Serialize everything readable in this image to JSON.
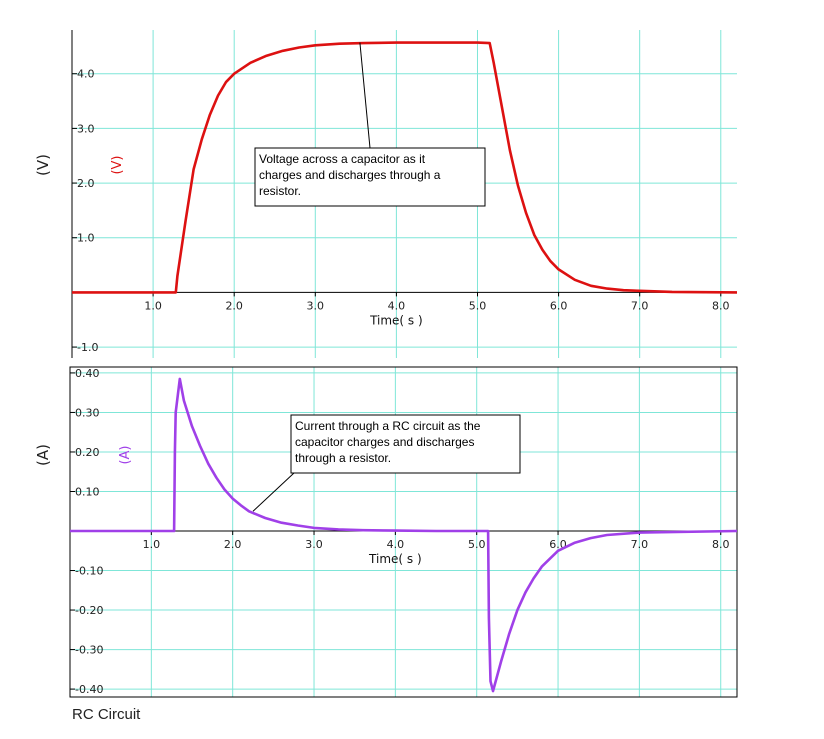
{
  "caption": "RC Circuit",
  "colors": {
    "grid": "#7fe6d8",
    "voltage": "#dd1111",
    "current": "#a040e8",
    "axis": "#000000"
  },
  "chart_data": [
    {
      "type": "line",
      "xlabel": "Time( s )",
      "ylabel": "(V)",
      "legend_label": "(V)",
      "xlim": [
        0,
        8.2
      ],
      "ylim": [
        -1.2,
        4.8
      ],
      "x_ticks": [
        1.0,
        2.0,
        3.0,
        4.0,
        5.0,
        6.0,
        7.0,
        8.0
      ],
      "x_tick_labels": [
        "1.0",
        "2.0",
        "3.0",
        "4.0",
        "5.0",
        "6.0",
        "7.0",
        "8.0"
      ],
      "y_ticks": [
        4.0,
        3.0,
        2.0,
        1.0,
        -1.0
      ],
      "y_tick_labels": [
        "4.0",
        "3.0",
        "2.0",
        "1.0",
        "-1.0"
      ],
      "grid": true,
      "annotation": [
        "Voltage across a capacitor as it",
        "charges and discharges through a",
        "resistor."
      ],
      "annotation_target": [
        3.55,
        4.57
      ],
      "series": [
        {
          "x": [
            0.0,
            1.0,
            1.28,
            1.3,
            1.4,
            1.5,
            1.6,
            1.7,
            1.8,
            1.9,
            2.0,
            2.2,
            2.4,
            2.6,
            2.8,
            3.0,
            3.3,
            3.6,
            4.0,
            4.5,
            5.0,
            5.15,
            5.2,
            5.3,
            5.4,
            5.5,
            5.6,
            5.7,
            5.8,
            5.9,
            6.0,
            6.2,
            6.4,
            6.6,
            6.8,
            7.0,
            7.4,
            8.2
          ],
          "y": [
            0.0,
            0.0,
            0.0,
            0.3,
            1.3,
            2.25,
            2.8,
            3.25,
            3.6,
            3.85,
            4.0,
            4.2,
            4.33,
            4.42,
            4.48,
            4.52,
            4.55,
            4.56,
            4.57,
            4.57,
            4.57,
            4.56,
            4.2,
            3.4,
            2.6,
            1.95,
            1.45,
            1.05,
            0.78,
            0.57,
            0.42,
            0.23,
            0.12,
            0.07,
            0.04,
            0.03,
            0.01,
            0.0
          ]
        }
      ]
    },
    {
      "type": "line",
      "xlabel": "Time( s )",
      "ylabel": "(A)",
      "legend_label": "(A)",
      "xlim": [
        0,
        8.2
      ],
      "ylim": [
        -0.42,
        0.415
      ],
      "x_ticks": [
        1.0,
        2.0,
        3.0,
        4.0,
        5.0,
        6.0,
        7.0,
        8.0
      ],
      "x_tick_labels": [
        "1.0",
        "2.0",
        "3.0",
        "4.0",
        "5.0",
        "6.0",
        "7.0",
        "8.0"
      ],
      "y_ticks": [
        0.4,
        0.3,
        0.2,
        0.1,
        -0.1,
        -0.2,
        -0.3,
        -0.4
      ],
      "y_tick_labels": [
        "0.40",
        "0.30",
        "0.20",
        "0.10",
        "-0.10",
        "-0.20",
        "-0.30",
        "-0.40"
      ],
      "grid": true,
      "annotation": [
        "Current through a RC circuit as the",
        "capacitor charges and discharges",
        "through a resistor."
      ],
      "annotation_target": [
        2.25,
        0.05
      ],
      "series": [
        {
          "x": [
            0.0,
            1.0,
            1.28,
            1.29,
            1.3,
            1.35,
            1.4,
            1.5,
            1.6,
            1.7,
            1.8,
            1.9,
            2.0,
            2.1,
            2.2,
            2.4,
            2.6,
            2.8,
            3.0,
            3.3,
            3.6,
            4.0,
            4.5,
            5.1,
            5.14,
            5.15,
            5.17,
            5.2,
            5.3,
            5.4,
            5.5,
            5.6,
            5.7,
            5.8,
            5.9,
            6.0,
            6.2,
            6.4,
            6.6,
            7.0,
            8.2
          ],
          "y": [
            0.0,
            0.0,
            0.0,
            0.2,
            0.3,
            0.385,
            0.33,
            0.265,
            0.215,
            0.17,
            0.135,
            0.105,
            0.082,
            0.065,
            0.05,
            0.033,
            0.021,
            0.014,
            0.008,
            0.004,
            0.002,
            0.001,
            0.0,
            0.0,
            0.0,
            -0.22,
            -0.38,
            -0.405,
            -0.33,
            -0.26,
            -0.2,
            -0.155,
            -0.12,
            -0.09,
            -0.07,
            -0.05,
            -0.03,
            -0.018,
            -0.01,
            -0.004,
            0.0
          ]
        }
      ]
    }
  ]
}
